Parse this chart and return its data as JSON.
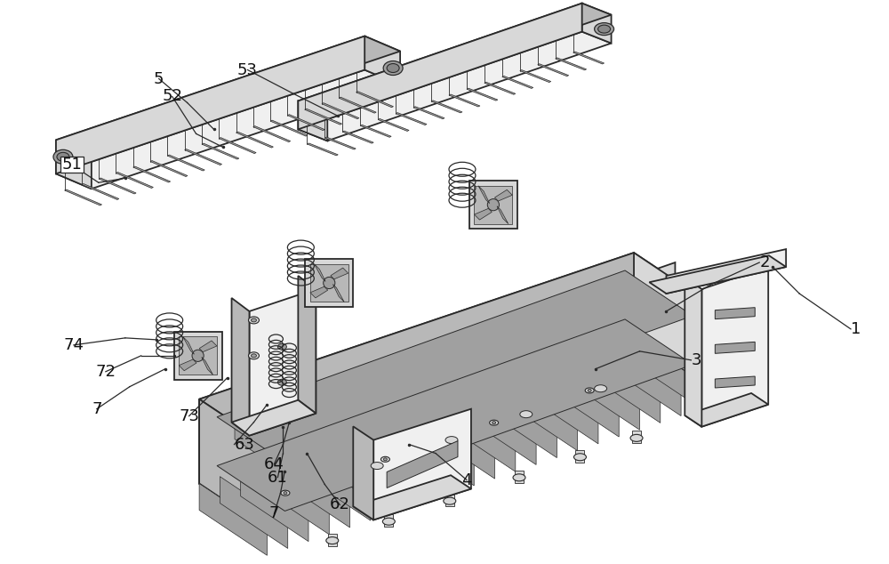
{
  "bg_color": "#ffffff",
  "lc": "#2a2a2a",
  "fc_light": "#f0f0f0",
  "fc_mid": "#d8d8d8",
  "fc_dark": "#b8b8b8",
  "fc_darker": "#a0a0a0",
  "lw_main": 1.3,
  "lw_thin": 0.8,
  "figsize": [
    10.0,
    6.34
  ],
  "dpi": 100,
  "label_fs": 13
}
